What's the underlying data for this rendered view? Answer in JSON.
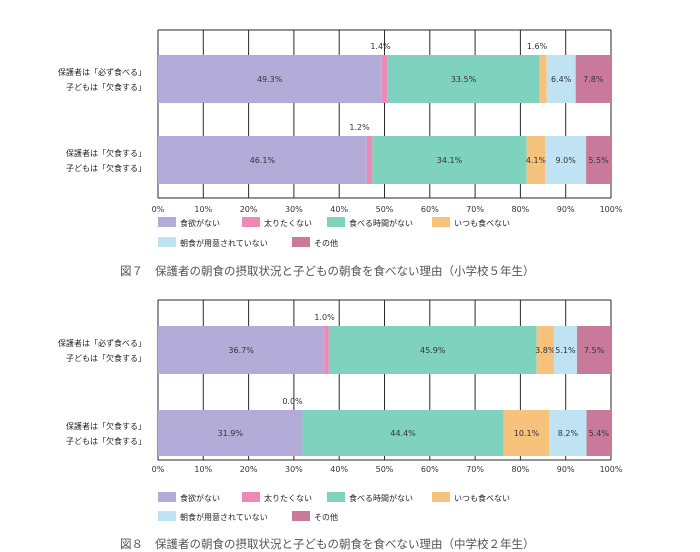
{
  "chart_data": [
    {
      "type": "bar",
      "orientation": "horizontal",
      "stacked": true,
      "caption_number": "図７",
      "caption_text": "保護者の朝食の摂取状況と子どもの朝食を食べない理由（小学校５年生）",
      "categories": [
        [
          "保護者は「必ず食べる」",
          "子どもは「欠食する」"
        ],
        [
          "保護者は「欠食する」",
          "子どもは「欠食する」"
        ]
      ],
      "series": [
        {
          "name": "食欲がない",
          "color": "#b3acd9",
          "values": [
            49.3,
            46.1
          ]
        },
        {
          "name": "太りたくない",
          "color": "#ee88b8",
          "values": [
            1.4,
            1.2
          ]
        },
        {
          "name": "食べる時間がない",
          "color": "#7fd3be",
          "values": [
            33.5,
            34.1
          ]
        },
        {
          "name": "いつも食べない",
          "color": "#f6c27c",
          "values": [
            1.6,
            4.1
          ]
        },
        {
          "name": "朝食が用意されていない",
          "color": "#bfe3f2",
          "values": [
            6.4,
            9.0
          ]
        },
        {
          "name": "その他",
          "color": "#c97a9a",
          "values": [
            7.8,
            5.5
          ]
        }
      ],
      "data_labels": [
        [
          "49.3%",
          "1.4%",
          "33.5%",
          "1.6%",
          "6.4%",
          "7.8%"
        ],
        [
          "46.1%",
          "1.2%",
          "34.1%",
          "4.1%",
          "9.0%",
          "5.5%"
        ]
      ],
      "xlim": [
        0,
        100
      ],
      "xticks": [
        "0%",
        "10%",
        "20%",
        "30%",
        "40%",
        "50%",
        "60%",
        "70%",
        "80%",
        "90%",
        "100%"
      ],
      "grid": true,
      "legend_position": "bottom"
    },
    {
      "type": "bar",
      "orientation": "horizontal",
      "stacked": true,
      "caption_number": "図８",
      "caption_text": "保護者の朝食の摂取状況と子どもの朝食を食べない理由（中学校２年生）",
      "categories": [
        [
          "保護者は「必ず食べる」",
          "子どもは「欠食する」"
        ],
        [
          "保護者は「欠食する」",
          "子どもは「欠食する」"
        ]
      ],
      "series": [
        {
          "name": "食欲がない",
          "color": "#b3acd9",
          "values": [
            36.7,
            31.9
          ]
        },
        {
          "name": "太りたくない",
          "color": "#ee88b8",
          "values": [
            1.0,
            0.0
          ]
        },
        {
          "name": "食べる時間がない",
          "color": "#7fd3be",
          "values": [
            45.9,
            44.4
          ]
        },
        {
          "name": "いつも食べない",
          "color": "#f6c27c",
          "values": [
            3.8,
            10.1
          ]
        },
        {
          "name": "朝食が用意されていない",
          "color": "#bfe3f2",
          "values": [
            5.1,
            8.2
          ]
        },
        {
          "name": "その他",
          "color": "#c97a9a",
          "values": [
            7.5,
            5.4
          ]
        }
      ],
      "data_labels": [
        [
          "36.7%",
          "1.0%",
          "45.9%",
          "3.8%",
          "5.1%",
          "7.5%"
        ],
        [
          "31.9%",
          "0.0%",
          "44.4%",
          "10.1%",
          "8.2%",
          "5.4%"
        ]
      ],
      "xlim": [
        0,
        100
      ],
      "xticks": [
        "0%",
        "10%",
        "20%",
        "30%",
        "40%",
        "50%",
        "60%",
        "70%",
        "80%",
        "90%",
        "100%"
      ],
      "grid": true,
      "legend_position": "bottom"
    }
  ]
}
